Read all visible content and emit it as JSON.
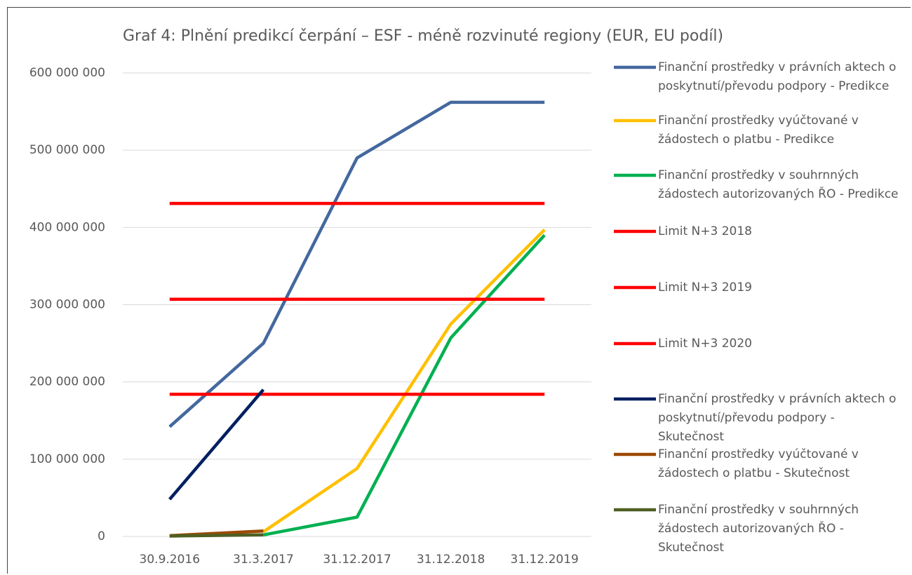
{
  "chart_data": {
    "type": "line",
    "title": "Graf 4: Plnění predikcí čerpání – ESF - méně rozvinuté regiony (EUR, EU podíl)",
    "categories": [
      "30.9.2016",
      "31.3.2017",
      "31.12.2017",
      "31.12.2018",
      "31.12.2019"
    ],
    "series": [
      {
        "name": "Finanční prostředky v právních aktech o poskytnutí/převodu podpory - Predikce",
        "color": "#44689f",
        "values": [
          142000000,
          250000000,
          490000000,
          562000000,
          562000000
        ]
      },
      {
        "name": "Finanční prostředky vyúčtované v žádostech o platbu - Predikce",
        "color": "#ffc000",
        "values": [
          null,
          6000000,
          88000000,
          275000000,
          397000000
        ]
      },
      {
        "name": "Finanční prostředky v souhrnných žádostech autorizovaných ŘO - Predikce",
        "color": "#00b050",
        "values": [
          null,
          2000000,
          25000000,
          257000000,
          390000000
        ]
      },
      {
        "name": "Limit N+3 2018",
        "color": "#ff0000",
        "values": [
          431000000,
          431000000,
          431000000,
          431000000,
          431000000
        ]
      },
      {
        "name": "Limit N+3 2019",
        "color": "#ff0000",
        "values": [
          307000000,
          307000000,
          307000000,
          307000000,
          307000000
        ]
      },
      {
        "name": "Limit N+3 2020",
        "color": "#ff0000",
        "values": [
          184000000,
          184000000,
          184000000,
          184000000,
          184000000
        ]
      },
      {
        "name": "Finanční prostředky v právních aktech o poskytnutí/převodu podpory - Skutečnost",
        "color": "#002060",
        "values": [
          48000000,
          190000000,
          null,
          null,
          null
        ]
      },
      {
        "name": "Finanční prostředky vyúčtované v žádostech o platbu - Skutečnost",
        "color": "#9c4a00",
        "values": [
          1000000,
          7000000,
          null,
          null,
          null
        ]
      },
      {
        "name": "Finanční prostředky v souhrnných žádostech autorizovaných ŘO - Skutečnost",
        "color": "#4e5f23",
        "values": [
          500000,
          2000000,
          null,
          null,
          null
        ]
      }
    ],
    "ylim": [
      0,
      600000000
    ],
    "yticks": [
      {
        "value": 0,
        "label": "0"
      },
      {
        "value": 100000000,
        "label": "100 000 000"
      },
      {
        "value": 200000000,
        "label": "200 000 000"
      },
      {
        "value": 300000000,
        "label": "300 000 000"
      },
      {
        "value": 400000000,
        "label": "400 000 000"
      },
      {
        "value": 500000000,
        "label": "500 000 000"
      },
      {
        "value": 600000000,
        "label": "600 000 000"
      }
    ],
    "grid": true,
    "legend": "right"
  }
}
